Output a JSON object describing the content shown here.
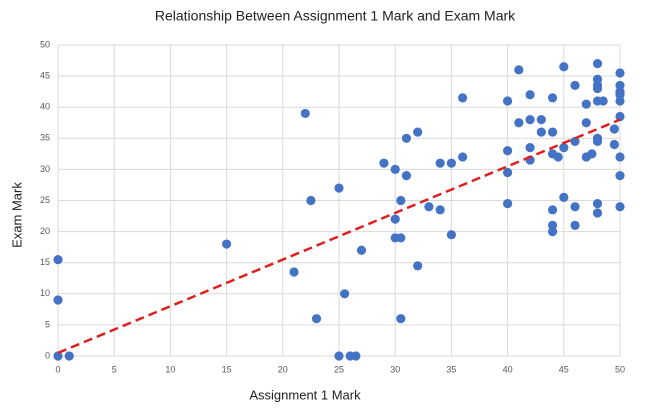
{
  "chart_data": {
    "type": "scatter",
    "title": "Relationship Between Assignment 1 Mark and Exam Mark",
    "x_label": "Assignment 1 Mark",
    "y_label": "Exam Mark",
    "series": [
      {
        "color": "#4472c4",
        "x": [
          0,
          1,
          0,
          0,
          15,
          21,
          22,
          22.5,
          23,
          25,
          25,
          25.5,
          26,
          26.5,
          27,
          29,
          30,
          30,
          30,
          30.5,
          30.5,
          30.5,
          31,
          31,
          32,
          32,
          33,
          34,
          34,
          35,
          35,
          36,
          36,
          40,
          40,
          40,
          40,
          41,
          41,
          42,
          42,
          42,
          42,
          43,
          43,
          44,
          44,
          44,
          44.5,
          44,
          44,
          44,
          45,
          45,
          45,
          46,
          46,
          46,
          46,
          47,
          47,
          47,
          47.5,
          48,
          48,
          48,
          48,
          48,
          48.5,
          48,
          48,
          48,
          48,
          49.5,
          49.5,
          50,
          50,
          50,
          50,
          50,
          50,
          50,
          50,
          50
        ],
        "values": [
          0,
          0,
          15.5,
          9,
          18,
          13.5,
          39,
          25,
          6,
          27,
          0,
          10,
          0,
          0,
          17,
          31,
          30,
          22,
          19,
          19,
          25,
          6,
          29,
          35,
          36,
          14.5,
          24,
          23.5,
          31,
          31,
          19.5,
          32,
          41.5,
          41,
          33,
          29.5,
          24.5,
          46,
          37.5,
          42,
          38,
          33.5,
          31.5,
          38,
          36,
          41.5,
          36,
          32.5,
          32,
          23.5,
          21,
          20,
          46.5,
          33.5,
          25.5,
          43.5,
          34.5,
          24,
          21,
          40.5,
          37.5,
          32,
          32.5,
          47,
          44.5,
          43.5,
          43,
          41,
          41,
          35,
          34.5,
          24.5,
          23,
          36.5,
          34,
          45.5,
          43.5,
          42.5,
          42,
          41,
          38.5,
          32,
          29,
          24
        ]
      }
    ],
    "trendline": {
      "color": "#e02020",
      "x": [
        0,
        50
      ],
      "values": [
        0.5,
        38
      ]
    },
    "xlim": [
      0,
      50
    ],
    "xticks": [
      0,
      5,
      10,
      15,
      20,
      25,
      30,
      35,
      40,
      45,
      50
    ],
    "ylim": [
      0,
      50
    ],
    "yticks": [
      0,
      5,
      10,
      15,
      20,
      25,
      30,
      35,
      40,
      45,
      50
    ],
    "grid": true
  }
}
